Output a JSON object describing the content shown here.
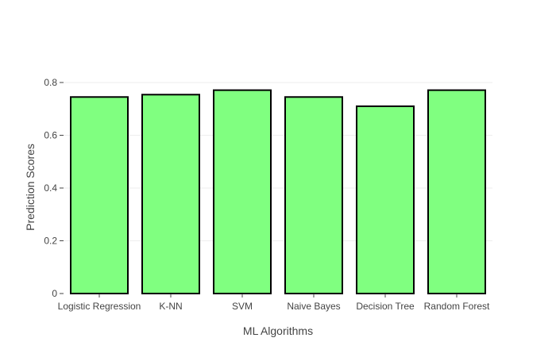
{
  "chart_data": {
    "type": "bar",
    "categories": [
      "Logistic Regression",
      "K-NN",
      "SVM",
      "Naive Bayes",
      "Decision Tree",
      "Random Forest"
    ],
    "values": [
      0.745,
      0.754,
      0.771,
      0.745,
      0.71,
      0.771
    ],
    "xlabel": "ML Algorithms",
    "ylabel": "Prediction Scores",
    "ylim": [
      0,
      0.8
    ],
    "yticks": [
      0,
      0.2,
      0.4,
      0.6,
      0.8
    ],
    "ytick_labels": [
      "0",
      "0.2",
      "0.4",
      "0.6",
      "0.8"
    ],
    "grid": true,
    "bar_color": "#80ff80",
    "bar_outline_color": "#000000",
    "axis_text_color": "#444444",
    "grid_color": "#eeeeee"
  }
}
